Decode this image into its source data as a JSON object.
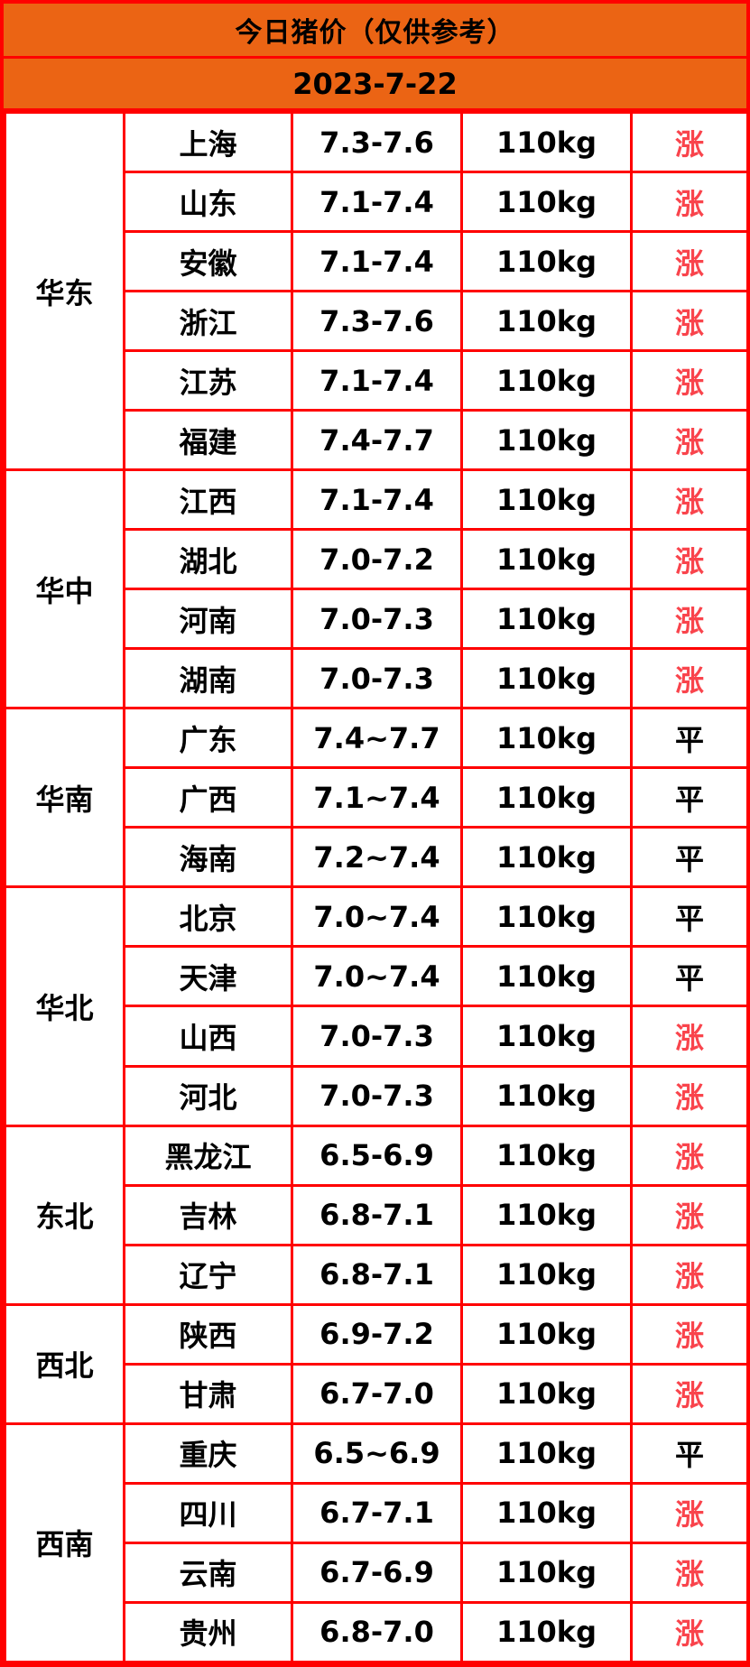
{
  "header": {
    "title": "今日猪价（仅供参考）",
    "date": "2023-7-22"
  },
  "colors": {
    "header_orange": "#EB6414",
    "border_red": "#FF0000",
    "up_red": "#F9444C",
    "flat_black": "#000000",
    "cell_white": "#FFFFFF"
  },
  "table": {
    "regions": [
      {
        "name": "华东",
        "rows": [
          {
            "province": "上海",
            "price": "7.3-7.6",
            "weight": "110kg",
            "status": "涨",
            "trend": "up"
          },
          {
            "province": "山东",
            "price": "7.1-7.4",
            "weight": "110kg",
            "status": "涨",
            "trend": "up"
          },
          {
            "province": "安徽",
            "price": "7.1-7.4",
            "weight": "110kg",
            "status": "涨",
            "trend": "up"
          },
          {
            "province": "浙江",
            "price": "7.3-7.6",
            "weight": "110kg",
            "status": "涨",
            "trend": "up"
          },
          {
            "province": "江苏",
            "price": "7.1-7.4",
            "weight": "110kg",
            "status": "涨",
            "trend": "up"
          },
          {
            "province": "福建",
            "price": "7.4-7.7",
            "weight": "110kg",
            "status": "涨",
            "trend": "up"
          }
        ]
      },
      {
        "name": "华中",
        "rows": [
          {
            "province": "江西",
            "price": "7.1-7.4",
            "weight": "110kg",
            "status": "涨",
            "trend": "up"
          },
          {
            "province": "湖北",
            "price": "7.0-7.2",
            "weight": "110kg",
            "status": "涨",
            "trend": "up"
          },
          {
            "province": "河南",
            "price": "7.0-7.3",
            "weight": "110kg",
            "status": "涨",
            "trend": "up"
          },
          {
            "province": "湖南",
            "price": "7.0-7.3",
            "weight": "110kg",
            "status": "涨",
            "trend": "up"
          }
        ]
      },
      {
        "name": "华南",
        "rows": [
          {
            "province": "广东",
            "price": "7.4~7.7",
            "weight": "110kg",
            "status": "平",
            "trend": "flat"
          },
          {
            "province": "广西",
            "price": "7.1~7.4",
            "weight": "110kg",
            "status": "平",
            "trend": "flat"
          },
          {
            "province": "海南",
            "price": "7.2~7.4",
            "weight": "110kg",
            "status": "平",
            "trend": "flat"
          }
        ]
      },
      {
        "name": "华北",
        "rows": [
          {
            "province": "北京",
            "price": "7.0~7.4",
            "weight": "110kg",
            "status": "平",
            "trend": "flat"
          },
          {
            "province": "天津",
            "price": "7.0~7.4",
            "weight": "110kg",
            "status": "平",
            "trend": "flat"
          },
          {
            "province": "山西",
            "price": "7.0-7.3",
            "weight": "110kg",
            "status": "涨",
            "trend": "up"
          },
          {
            "province": "河北",
            "price": "7.0-7.3",
            "weight": "110kg",
            "status": "涨",
            "trend": "up"
          }
        ]
      },
      {
        "name": "东北",
        "rows": [
          {
            "province": "黑龙江",
            "price": "6.5-6.9",
            "weight": "110kg",
            "status": "涨",
            "trend": "up"
          },
          {
            "province": "吉林",
            "price": "6.8-7.1",
            "weight": "110kg",
            "status": "涨",
            "trend": "up"
          },
          {
            "province": "辽宁",
            "price": "6.8-7.1",
            "weight": "110kg",
            "status": "涨",
            "trend": "up"
          }
        ]
      },
      {
        "name": "西北",
        "rows": [
          {
            "province": "陕西",
            "price": "6.9-7.2",
            "weight": "110kg",
            "status": "涨",
            "trend": "up"
          },
          {
            "province": "甘肃",
            "price": "6.7-7.0",
            "weight": "110kg",
            "status": "涨",
            "trend": "up"
          }
        ]
      },
      {
        "name": "西南",
        "rows": [
          {
            "province": "重庆",
            "price": "6.5~6.9",
            "weight": "110kg",
            "status": "平",
            "trend": "flat"
          },
          {
            "province": "四川",
            "price": "6.7-7.1",
            "weight": "110kg",
            "status": "涨",
            "trend": "up"
          },
          {
            "province": "云南",
            "price": "6.7-6.9",
            "weight": "110kg",
            "status": "涨",
            "trend": "up"
          },
          {
            "province": "贵州",
            "price": "6.8-7.0",
            "weight": "110kg",
            "status": "涨",
            "trend": "up"
          }
        ]
      }
    ]
  },
  "chart_data": {
    "type": "table",
    "title": "今日猪价（仅供参考）",
    "subtitle": "2023-7-22",
    "rows": [
      [
        "华东",
        "上海",
        "7.3-7.6",
        "110kg",
        "涨"
      ],
      [
        "华东",
        "山东",
        "7.1-7.4",
        "110kg",
        "涨"
      ],
      [
        "华东",
        "安徽",
        "7.1-7.4",
        "110kg",
        "涨"
      ],
      [
        "华东",
        "浙江",
        "7.3-7.6",
        "110kg",
        "涨"
      ],
      [
        "华东",
        "江苏",
        "7.1-7.4",
        "110kg",
        "涨"
      ],
      [
        "华东",
        "福建",
        "7.4-7.7",
        "110kg",
        "涨"
      ],
      [
        "华中",
        "江西",
        "7.1-7.4",
        "110kg",
        "涨"
      ],
      [
        "华中",
        "湖北",
        "7.0-7.2",
        "110kg",
        "涨"
      ],
      [
        "华中",
        "河南",
        "7.0-7.3",
        "110kg",
        "涨"
      ],
      [
        "华中",
        "湖南",
        "7.0-7.3",
        "110kg",
        "涨"
      ],
      [
        "华南",
        "广东",
        "7.4~7.7",
        "110kg",
        "平"
      ],
      [
        "华南",
        "广西",
        "7.1~7.4",
        "110kg",
        "平"
      ],
      [
        "华南",
        "海南",
        "7.2~7.4",
        "110kg",
        "平"
      ],
      [
        "华北",
        "北京",
        "7.0~7.4",
        "110kg",
        "平"
      ],
      [
        "华北",
        "天津",
        "7.0~7.4",
        "110kg",
        "平"
      ],
      [
        "华北",
        "山西",
        "7.0-7.3",
        "110kg",
        "涨"
      ],
      [
        "华北",
        "河北",
        "7.0-7.3",
        "110kg",
        "涨"
      ],
      [
        "东北",
        "黑龙江",
        "6.5-6.9",
        "110kg",
        "涨"
      ],
      [
        "东北",
        "吉林",
        "6.8-7.1",
        "110kg",
        "涨"
      ],
      [
        "东北",
        "辽宁",
        "6.8-7.1",
        "110kg",
        "涨"
      ],
      [
        "西北",
        "陕西",
        "6.9-7.2",
        "110kg",
        "涨"
      ],
      [
        "西北",
        "甘肃",
        "6.7-7.0",
        "110kg",
        "涨"
      ],
      [
        "西南",
        "重庆",
        "6.5~6.9",
        "110kg",
        "平"
      ],
      [
        "西南",
        "四川",
        "6.7-7.1",
        "110kg",
        "涨"
      ],
      [
        "西南",
        "云南",
        "6.7-6.9",
        "110kg",
        "涨"
      ],
      [
        "西南",
        "贵州",
        "6.8-7.0",
        "110kg",
        "涨"
      ]
    ]
  }
}
